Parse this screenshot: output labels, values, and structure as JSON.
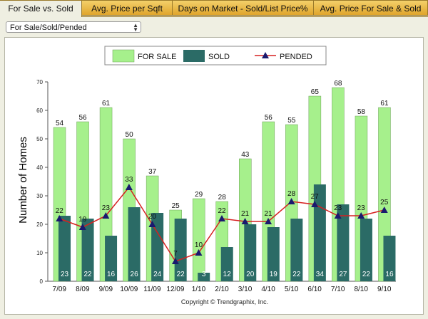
{
  "tabs": [
    {
      "label": "For Sale vs. Sold",
      "active": true
    },
    {
      "label": "Avg. Price per Sqft",
      "active": false
    },
    {
      "label": "Days on Market - Sold/List Price%",
      "active": false
    },
    {
      "label": "Avg. Price For Sale & Sold",
      "active": false
    }
  ],
  "filter": {
    "selected": "For Sale/Sold/Pended"
  },
  "copyright": "Copyright © Trendgraphix, Inc.",
  "colors": {
    "for_sale": "#a6f08c",
    "sold": "#2b6b66",
    "pended_line": "#d62020",
    "pended_marker": "#1a1a6e",
    "tab_gold": "#e8b43c"
  },
  "chart_data": {
    "type": "bar",
    "categories": [
      "7/09",
      "8/09",
      "9/09",
      "10/09",
      "11/09",
      "12/09",
      "1/10",
      "2/10",
      "3/10",
      "4/10",
      "5/10",
      "6/10",
      "7/10",
      "8/10",
      "9/10"
    ],
    "series": [
      {
        "name": "FOR SALE",
        "type": "bar",
        "values": [
          54,
          56,
          61,
          50,
          37,
          25,
          29,
          28,
          43,
          56,
          55,
          65,
          68,
          58,
          61
        ]
      },
      {
        "name": "SOLD",
        "type": "bar",
        "values": [
          23,
          22,
          16,
          26,
          24,
          22,
          3,
          12,
          20,
          19,
          22,
          34,
          27,
          22,
          16
        ]
      },
      {
        "name": "PENDED",
        "type": "line",
        "values": [
          22,
          19,
          23,
          33,
          20,
          7,
          10,
          22,
          21,
          21,
          28,
          27,
          23,
          23,
          25
        ]
      }
    ],
    "ylabel": "Number of Homes",
    "ylim": [
      0,
      70
    ],
    "yticks": [
      0,
      10,
      20,
      30,
      40,
      50,
      60,
      70
    ],
    "legend_position": "top-center",
    "grid": false
  }
}
